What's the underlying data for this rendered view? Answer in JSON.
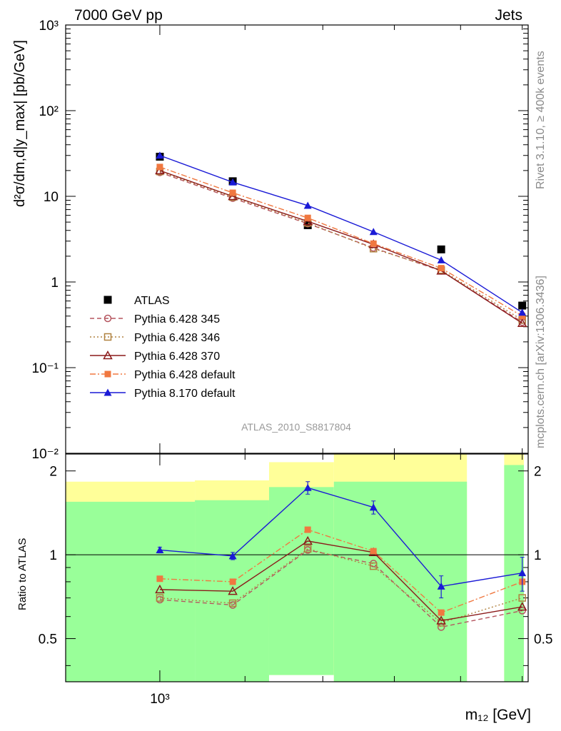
{
  "header": {
    "left": "7000 GeV pp",
    "right": "Jets"
  },
  "side_labels": {
    "rivet": "Rivet 3.1.10, ≥ 400k events",
    "mcplots": "mcplots.cern.ch [arXiv:1306.3436]"
  },
  "analysis_label": "ATLAS_2010_S8817804",
  "chart_data": [
    {
      "type": "line",
      "title": "",
      "ylabel": "d²σ/dm,d|y_max| [pb/GeV]",
      "yscale": "log",
      "xscale": "log",
      "xlim": [
        900,
        1510
      ],
      "ylim": [
        0.01,
        1000
      ],
      "y_ticks": [
        "10⁻²",
        "10⁻¹",
        "1",
        "10",
        "10²",
        "10³"
      ],
      "x": [
        1000,
        1085,
        1180,
        1270,
        1370,
        1500
      ],
      "legend_position": "center-left",
      "series": [
        {
          "name": "ATLAS",
          "color": "#000000",
          "marker": "filled-square",
          "line": "none",
          "values": [
            29,
            15,
            4.6,
            null,
            2.4,
            0.53
          ]
        },
        {
          "name": "Pythia 6.428 345",
          "color": "#b5555f",
          "marker": "open-circle",
          "line": "dashed",
          "values": [
            19,
            9.5,
            4.8,
            2.5,
            1.35,
            0.34
          ]
        },
        {
          "name": "Pythia 6.428 346",
          "color": "#b08240",
          "marker": "open-square",
          "line": "dotted",
          "values": [
            19.5,
            9.8,
            4.9,
            2.45,
            1.38,
            0.36
          ]
        },
        {
          "name": "Pythia 6.428 370",
          "color": "#8b1a1a",
          "marker": "open-triangle",
          "line": "solid",
          "values": [
            20,
            10,
            5.1,
            2.75,
            1.35,
            0.33
          ]
        },
        {
          "name": "Pythia 6.428 default",
          "color": "#f07840",
          "marker": "filled-square",
          "line": "dashdot",
          "values": [
            22,
            11,
            5.6,
            2.8,
            1.45,
            0.4
          ]
        },
        {
          "name": "Pythia 8.170 default",
          "color": "#1a1ad6",
          "marker": "filled-triangle",
          "line": "solid",
          "values": [
            30,
            14.6,
            7.8,
            3.85,
            1.8,
            0.44
          ]
        }
      ]
    },
    {
      "type": "line",
      "title": "",
      "ylabel": "Ratio to ATLAS",
      "xlabel": "m₁₂ [GeV]",
      "yscale": "log",
      "xscale": "log",
      "xlim": [
        900,
        1510
      ],
      "ylim": [
        0.35,
        2.3
      ],
      "y_ticks": [
        "0.5",
        "1",
        "2"
      ],
      "x_ticks": [
        "10³"
      ],
      "reference_line": 1,
      "bands": [
        {
          "x_range": [
            900,
            1040
          ],
          "yellow": [
            0.58,
            1.83
          ],
          "green": [
            0.35,
            1.55
          ]
        },
        {
          "x_range": [
            1040,
            1130
          ],
          "yellow": [
            0.55,
            1.85
          ],
          "green": [
            0.35,
            1.57
          ]
        },
        {
          "x_range": [
            1130,
            1215
          ],
          "yellow": [
            0.37,
            2.15
          ],
          "green": [
            0.37,
            1.75
          ]
        },
        {
          "x_range": [
            1215,
            1410
          ],
          "yellow": [
            0.35,
            2.3
          ],
          "green": [
            0.35,
            1.83
          ]
        },
        {
          "x_range": [
            1410,
            1470
          ],
          "yellow": null,
          "green": null
        },
        {
          "x_range": [
            1470,
            1510
          ],
          "yellow": [
            0.35,
            2.8
          ],
          "green": [
            0.35,
            2.1
          ]
        }
      ],
      "x": [
        1000,
        1085,
        1180,
        1270,
        1370,
        1500
      ],
      "series": [
        {
          "name": "Pythia 6.428 345",
          "color": "#b5555f",
          "marker": "open-circle",
          "line": "dashed",
          "values": [
            0.69,
            0.66,
            1.04,
            0.93,
            0.55,
            0.63
          ]
        },
        {
          "name": "Pythia 6.428 346",
          "color": "#b08240",
          "marker": "open-square",
          "line": "dotted",
          "values": [
            0.7,
            0.67,
            1.05,
            0.91,
            0.57,
            0.7
          ]
        },
        {
          "name": "Pythia 6.428 370",
          "color": "#8b1a1a",
          "marker": "open-triangle",
          "line": "solid",
          "values": [
            0.75,
            0.74,
            1.12,
            1.02,
            0.58,
            0.65
          ]
        },
        {
          "name": "Pythia 6.428 default",
          "color": "#f07840",
          "marker": "filled-square",
          "line": "dashdot",
          "values": [
            0.82,
            0.8,
            1.23,
            1.03,
            0.62,
            0.8
          ]
        },
        {
          "name": "Pythia 8.170 default",
          "color": "#1a1ad6",
          "marker": "filled-triangle",
          "line": "solid",
          "values": [
            1.04,
            0.99,
            1.74,
            1.48,
            0.77,
            0.86
          ],
          "errors": [
            0.025,
            0.03,
            0.09,
            0.08,
            0.07,
            0.12
          ]
        }
      ]
    }
  ]
}
